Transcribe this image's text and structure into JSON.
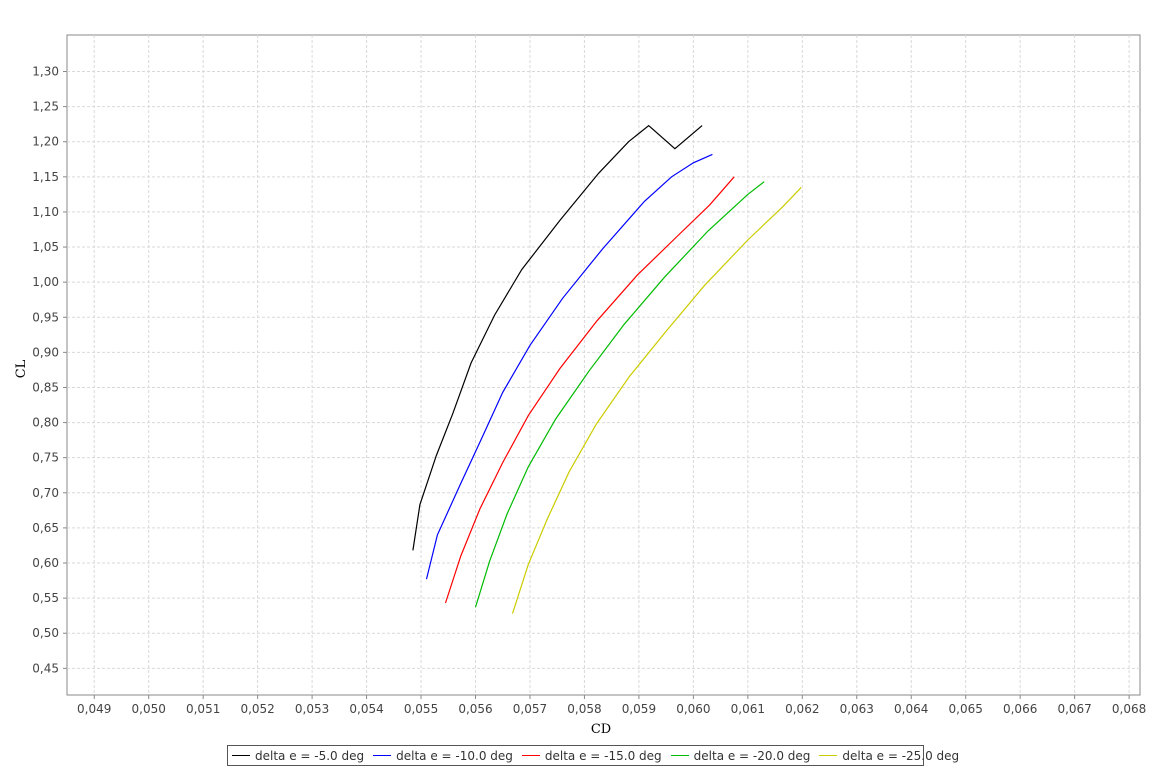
{
  "chart_data": {
    "type": "line",
    "title": "",
    "xlabel": "CD",
    "ylabel": "CL",
    "xlim": [
      0.0485,
      0.0682
    ],
    "ylim": [
      0.412,
      1.352
    ],
    "x_ticks": [
      "0,049",
      "0,050",
      "0,051",
      "0,052",
      "0,053",
      "0,054",
      "0,055",
      "0,056",
      "0,057",
      "0,058",
      "0,059",
      "0,060",
      "0,061",
      "0,062",
      "0,063",
      "0,064",
      "0,065",
      "0,066",
      "0,067",
      "0,068"
    ],
    "x_tick_values": [
      0.049,
      0.05,
      0.051,
      0.052,
      0.053,
      0.054,
      0.055,
      0.056,
      0.057,
      0.058,
      0.059,
      0.06,
      0.061,
      0.062,
      0.063,
      0.064,
      0.065,
      0.066,
      0.067,
      0.068
    ],
    "y_ticks": [
      "0,45",
      "0,50",
      "0,55",
      "0,60",
      "0,65",
      "0,70",
      "0,75",
      "0,80",
      "0,85",
      "0,90",
      "0,95",
      "1,00",
      "1,05",
      "1,10",
      "1,15",
      "1,20",
      "1,25",
      "1,30"
    ],
    "y_tick_values": [
      0.45,
      0.5,
      0.55,
      0.6,
      0.65,
      0.7,
      0.75,
      0.8,
      0.85,
      0.9,
      0.95,
      1.0,
      1.05,
      1.1,
      1.15,
      1.2,
      1.25,
      1.3
    ],
    "grid": true,
    "legend_position": "bottom",
    "series": [
      {
        "name": "delta e = -5.0 deg",
        "color": "#000000",
        "x": [
          0.05485,
          0.05498,
          0.05528,
          0.05558,
          0.05592,
          0.05635,
          0.05685,
          0.05755,
          0.05826,
          0.05881,
          0.05918,
          0.05966,
          0.06016
        ],
        "y": [
          0.618,
          0.683,
          0.753,
          0.812,
          0.885,
          0.953,
          1.018,
          1.088,
          1.155,
          1.2,
          1.223,
          1.19,
          1.223
        ]
      },
      {
        "name": "delta e = -10.0 deg",
        "color": "#0000ff",
        "x": [
          0.0551,
          0.0553,
          0.05571,
          0.05611,
          0.0565,
          0.057,
          0.0576,
          0.05833,
          0.0591,
          0.0596,
          0.06,
          0.06035
        ],
        "y": [
          0.577,
          0.64,
          0.71,
          0.777,
          0.843,
          0.91,
          0.977,
          1.047,
          1.115,
          1.15,
          1.17,
          1.182
        ]
      },
      {
        "name": "delta e = -15.0 deg",
        "color": "#ff0000",
        "x": [
          0.05545,
          0.05573,
          0.05608,
          0.0565,
          0.05697,
          0.05755,
          0.05823,
          0.05897,
          0.0597,
          0.0603,
          0.06075
        ],
        "y": [
          0.543,
          0.61,
          0.677,
          0.743,
          0.81,
          0.877,
          0.945,
          1.01,
          1.065,
          1.11,
          1.15
        ]
      },
      {
        "name": "delta e = -20.0 deg",
        "color": "#00bb00",
        "x": [
          0.056,
          0.05626,
          0.05658,
          0.05697,
          0.05747,
          0.05808,
          0.05873,
          0.05947,
          0.06027,
          0.061,
          0.0613
        ],
        "y": [
          0.537,
          0.603,
          0.67,
          0.737,
          0.805,
          0.873,
          0.94,
          1.007,
          1.073,
          1.125,
          1.143
        ]
      },
      {
        "name": "delta e = -25.0 deg",
        "color": "#cccc00",
        "x": [
          0.05668,
          0.05697,
          0.05732,
          0.05772,
          0.05822,
          0.05882,
          0.0595,
          0.0602,
          0.061,
          0.06165,
          0.06198
        ],
        "y": [
          0.528,
          0.598,
          0.663,
          0.73,
          0.798,
          0.865,
          0.93,
          0.995,
          1.06,
          1.108,
          1.135
        ]
      }
    ]
  }
}
